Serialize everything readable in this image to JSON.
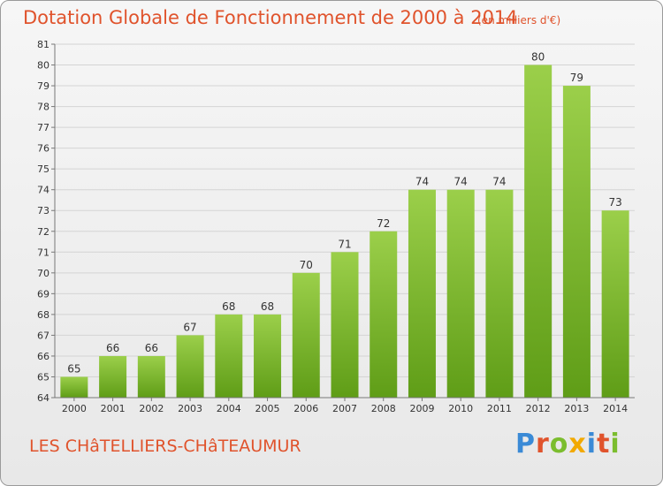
{
  "chart_data": {
    "type": "bar",
    "title": "Dotation Globale de Fonctionnement de 2000 à 2014",
    "subtitle": "(en milliers d'€)",
    "categories": [
      "2000",
      "2001",
      "2002",
      "2003",
      "2004",
      "2005",
      "2006",
      "2007",
      "2008",
      "2009",
      "2010",
      "2011",
      "2012",
      "2013",
      "2014"
    ],
    "values": [
      65,
      66,
      66,
      67,
      68,
      68,
      70,
      71,
      72,
      74,
      74,
      74,
      80,
      79,
      73
    ],
    "ylim": [
      64,
      81
    ],
    "yticks": [
      64,
      65,
      66,
      67,
      68,
      69,
      70,
      71,
      72,
      73,
      74,
      75,
      76,
      77,
      78,
      79,
      80,
      81
    ],
    "grid": true,
    "bar_color_top": "#9bcf4a",
    "bar_color_bottom": "#5f9d17"
  },
  "footer": {
    "commune": "LES CHâTELLIERS-CHâTEAUMUR",
    "brand_letters": [
      "P",
      "r",
      "o",
      "x",
      "i",
      "t",
      "i"
    ]
  }
}
